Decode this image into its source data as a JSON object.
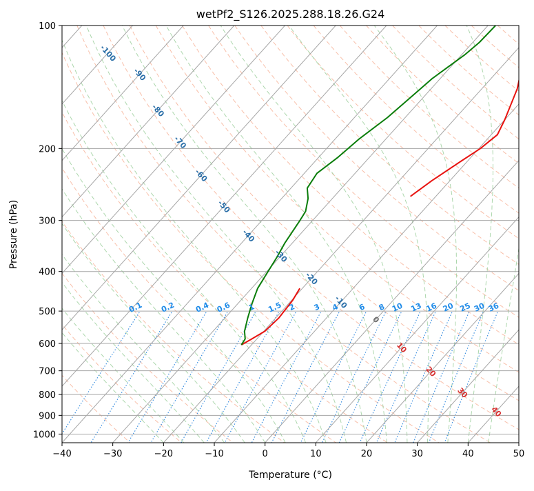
{
  "chart_data": {
    "type": "line",
    "title": "wetPf2_S126.2025.288.18.26.G24",
    "xlabel": "Temperature (°C)",
    "ylabel": "Pressure (hPa)",
    "xlim": [
      -40,
      50
    ],
    "ylim": [
      1050,
      100
    ],
    "x_ticks": [
      -40,
      -30,
      -20,
      -10,
      0,
      10,
      20,
      30,
      40,
      50
    ],
    "y_ticks": [
      100,
      200,
      300,
      400,
      500,
      600,
      700,
      800,
      900,
      1000
    ],
    "grid": true,
    "skew": "skew-T log-p",
    "colors": {
      "temperature": "#e8120f",
      "dewpoint": "#0a7d0a",
      "isotherm": "#a6a6a6",
      "dry_adiabat": "#f5a98c",
      "moist_adiabat": "#9fd09f",
      "mixing_ratio": "#3b8fe0",
      "label_blue": "#2b6fa8",
      "label_red": "#d63030",
      "label_mr": "#1f8be8",
      "label_gray": "#707070"
    },
    "series": [
      {
        "name": "temperature",
        "points": [
          [
            -20.5,
            440
          ],
          [
            -19.8,
            470
          ],
          [
            -19.4,
            520
          ],
          [
            -19.8,
            560
          ],
          [
            -21.0,
            585
          ],
          [
            -22.0,
            605
          ]
        ]
      },
      {
        "name": "temperature_upper",
        "points": [
          [
            -22.2,
            100
          ],
          [
            -19.5,
            110
          ],
          [
            -16.8,
            122
          ],
          [
            -13.0,
            143
          ],
          [
            -10.0,
            170
          ],
          [
            -8.8,
            185
          ],
          [
            -9.7,
            200
          ],
          [
            -11.3,
            215
          ],
          [
            -13.6,
            240
          ],
          [
            -15.0,
            262
          ]
        ]
      },
      {
        "name": "dewpoint",
        "points": [
          [
            -28.5,
            100
          ],
          [
            -28.7,
            110
          ],
          [
            -29.4,
            118
          ],
          [
            -31.6,
            135
          ],
          [
            -32.5,
            150
          ],
          [
            -33.5,
            168
          ],
          [
            -35.3,
            190
          ],
          [
            -36.2,
            210
          ],
          [
            -37.5,
            230
          ],
          [
            -36.8,
            250
          ],
          [
            -34.8,
            265
          ],
          [
            -33.0,
            285
          ],
          [
            -32.5,
            300
          ],
          [
            -31.5,
            340
          ],
          [
            -30.5,
            370
          ],
          [
            -29.5,
            410
          ],
          [
            -28.8,
            440
          ],
          [
            -27.2,
            480
          ],
          [
            -25.5,
            520
          ],
          [
            -23.8,
            560
          ],
          [
            -22.3,
            585
          ],
          [
            -22.0,
            605
          ]
        ]
      }
    ],
    "isotherm_labels": [
      "-100",
      "-90",
      "-80",
      "-70",
      "-60",
      "-50",
      "-40",
      "-30",
      "-20",
      "-10"
    ],
    "mixing_ratio_labels": [
      "0.1",
      "0.2",
      "0.4",
      "0.6",
      "1",
      "1.5",
      "2",
      "3",
      "4",
      "6",
      "8",
      "10",
      "13",
      "16",
      "20",
      "25",
      "30",
      "36"
    ],
    "mixing_ratio_values": [
      0.1,
      0.2,
      0.4,
      0.6,
      1,
      1.5,
      2,
      3,
      4,
      6,
      8,
      10,
      13,
      16,
      20,
      25,
      30,
      36
    ],
    "isotherm_label_values": [
      -100,
      -90,
      -80,
      -70,
      -60,
      -50,
      -40,
      -30,
      -20,
      -10
    ],
    "isotherm_label_pressures": [
      118,
      133,
      163,
      195,
      235,
      280,
      330,
      370,
      420,
      480
    ],
    "moist_adiabat_labels": [
      "0",
      "10",
      "20",
      "30",
      "40"
    ],
    "moist_adiabat_label_points": [
      [
        0,
        530
      ],
      [
        10,
        620
      ],
      [
        20,
        710
      ],
      [
        30,
        800
      ],
      [
        40,
        890
      ]
    ]
  }
}
